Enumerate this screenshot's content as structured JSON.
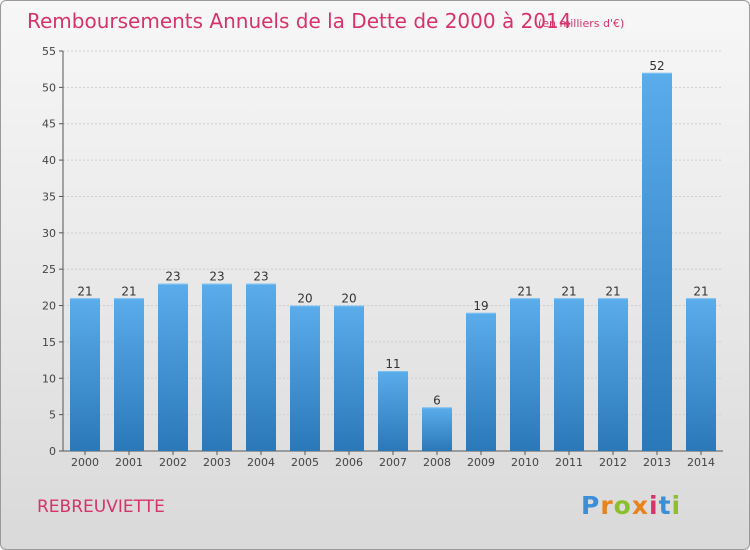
{
  "header": {
    "title": "Remboursements Annuels de la Dette de 2000 à 2014",
    "unit_note": "(en milliers d'€)"
  },
  "footer": {
    "commune": "REBREUVIETTE",
    "logo_text": "Proxiti",
    "logo_colors": [
      "#3a8fd8",
      "#e8821c",
      "#8bbf2e",
      "#e8821c",
      "#d6336c",
      "#3a8fd8",
      "#8bbf2e"
    ]
  },
  "colors": {
    "bar_top": "#5aacea",
    "bar_bottom": "#2b78b8",
    "title": "#d6336c",
    "grid": "#cfcfcf"
  },
  "chart_data": {
    "type": "bar",
    "categories": [
      "2000",
      "2001",
      "2002",
      "2003",
      "2004",
      "2005",
      "2006",
      "2007",
      "2008",
      "2009",
      "2010",
      "2011",
      "2012",
      "2013",
      "2014"
    ],
    "values": [
      21,
      21,
      23,
      23,
      23,
      20,
      20,
      11,
      6,
      19,
      21,
      21,
      21,
      52,
      21
    ],
    "ylim": [
      0,
      55
    ],
    "yticks": [
      0,
      5,
      10,
      15,
      20,
      25,
      30,
      35,
      40,
      45,
      50,
      55
    ],
    "grid": true,
    "data_labels": true
  }
}
